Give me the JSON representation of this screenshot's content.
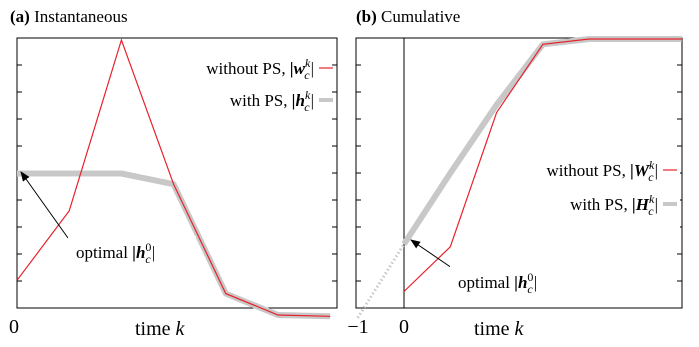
{
  "chart_data": [
    {
      "type": "line",
      "panel_label": "(a)",
      "title": "Instantaneous",
      "xlabel": "time k",
      "xlabel_text": "time",
      "xlabel_var": "k",
      "x_tick_labels": [
        "0"
      ],
      "xlim": [
        0,
        6
      ],
      "ylim": [
        0,
        1
      ],
      "series": [
        {
          "name": "without PS, |w_c^k|",
          "name_text": "without PS,",
          "name_math": "|w",
          "sup": "k",
          "sub": "c",
          "color": "#e8202a",
          "x": [
            0,
            1,
            2,
            3,
            4,
            5,
            6
          ],
          "y": [
            0.1,
            0.36,
            1.0,
            0.46,
            0.05,
            -0.03,
            -0.035
          ]
        },
        {
          "name": "with PS, |h_c^k|",
          "name_text": "with PS,",
          "name_math": "|h",
          "sup": "k",
          "sub": "c",
          "color": "#c8c8c8",
          "x": [
            0,
            1,
            2,
            3,
            4,
            5,
            6
          ],
          "y": [
            0.5,
            0.5,
            0.5,
            0.46,
            0.05,
            -0.03,
            -0.035
          ]
        }
      ],
      "annotation": {
        "text": "optimal",
        "math": "|h",
        "sup": "0",
        "sub": "c"
      },
      "legend_position": "top-right",
      "grid": false
    },
    {
      "type": "line",
      "panel_label": "(b)",
      "title": "Cumulative",
      "xlabel": "time k",
      "xlabel_text": "time",
      "xlabel_var": "k",
      "x_tick_labels": [
        "−1",
        "0"
      ],
      "xlim": [
        -1,
        6
      ],
      "ylim": [
        0,
        1
      ],
      "series": [
        {
          "name": "without PS, |W_c^k|",
          "name_text": "without PS,",
          "name_math": "|W",
          "sup": "k",
          "sub": "c",
          "color": "#e8202a",
          "x": [
            0,
            1,
            2,
            3,
            4,
            5,
            6
          ],
          "y": [
            0.04,
            0.21,
            0.72,
            0.98,
            1.0,
            1.0,
            1.0
          ]
        },
        {
          "name": "with PS, |H_c^k|",
          "name_text": "with PS,",
          "name_math": "|H",
          "sup": "k",
          "sub": "c",
          "color": "#c8c8c8",
          "x": [
            0,
            1,
            2,
            3,
            4,
            5,
            6
          ],
          "y": [
            0.22,
            0.49,
            0.75,
            0.98,
            1.0,
            1.0,
            1.0
          ]
        }
      ],
      "extrapolation": {
        "x": [
          -1,
          0
        ],
        "y": [
          -0.06,
          0.22
        ],
        "style": "dotted"
      },
      "annotation": {
        "text": "optimal",
        "math": "|h",
        "sup": "0",
        "sub": "c"
      },
      "legend_position": "center-right",
      "grid": false
    }
  ]
}
